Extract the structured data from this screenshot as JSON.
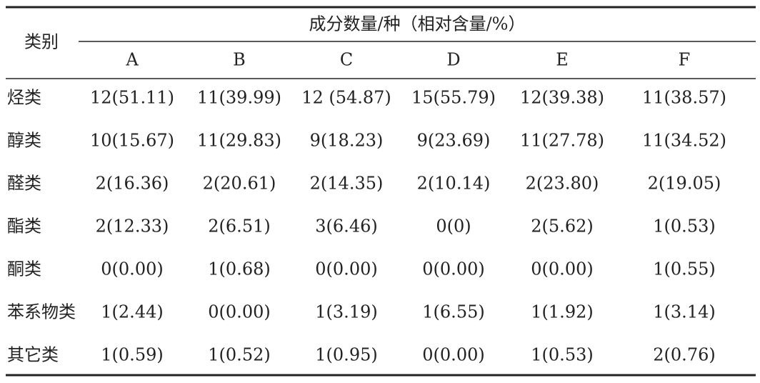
{
  "table": {
    "row_header": "类别",
    "group_header": "成分数量/种（相对含量/%）",
    "columns": [
      "A",
      "B",
      "C",
      "D",
      "E",
      "F"
    ],
    "rows": [
      [
        "烃类",
        "12(51.11)",
        "11(39.99)",
        "12 (54.87)",
        "15(55.79)",
        "12(39.38)",
        "11(38.57)"
      ],
      [
        "醇类",
        "10(15.67)",
        "11(29.83)",
        "9(18.23)",
        "9(23.69)",
        "11(27.78)",
        "11(34.52)"
      ],
      [
        "醛类",
        "2(16.36)",
        "2(20.61)",
        "2(14.35)",
        "2(10.14)",
        "2(23.80)",
        "2(19.05)"
      ],
      [
        "酯类",
        "2(12.33)",
        "2(6.51)",
        "3(6.46)",
        "0(0)",
        "2(5.62)",
        "1(0.53)"
      ],
      [
        "酮类",
        "0(0.00)",
        "1(0.68)",
        "0(0.00)",
        "0(0.00)",
        "0(0.00)",
        "1(0.55)"
      ],
      [
        "苯系物类",
        "1(2.44)",
        "0(0.00)",
        "1(3.19)",
        "1(6.55)",
        "1(1.92)",
        "1(3.14)"
      ],
      [
        "其它类",
        "1(0.59)",
        "1(0.52)",
        "1(0.95)",
        "0(0.00)",
        "1(0.53)",
        "2(0.76)"
      ]
    ]
  }
}
